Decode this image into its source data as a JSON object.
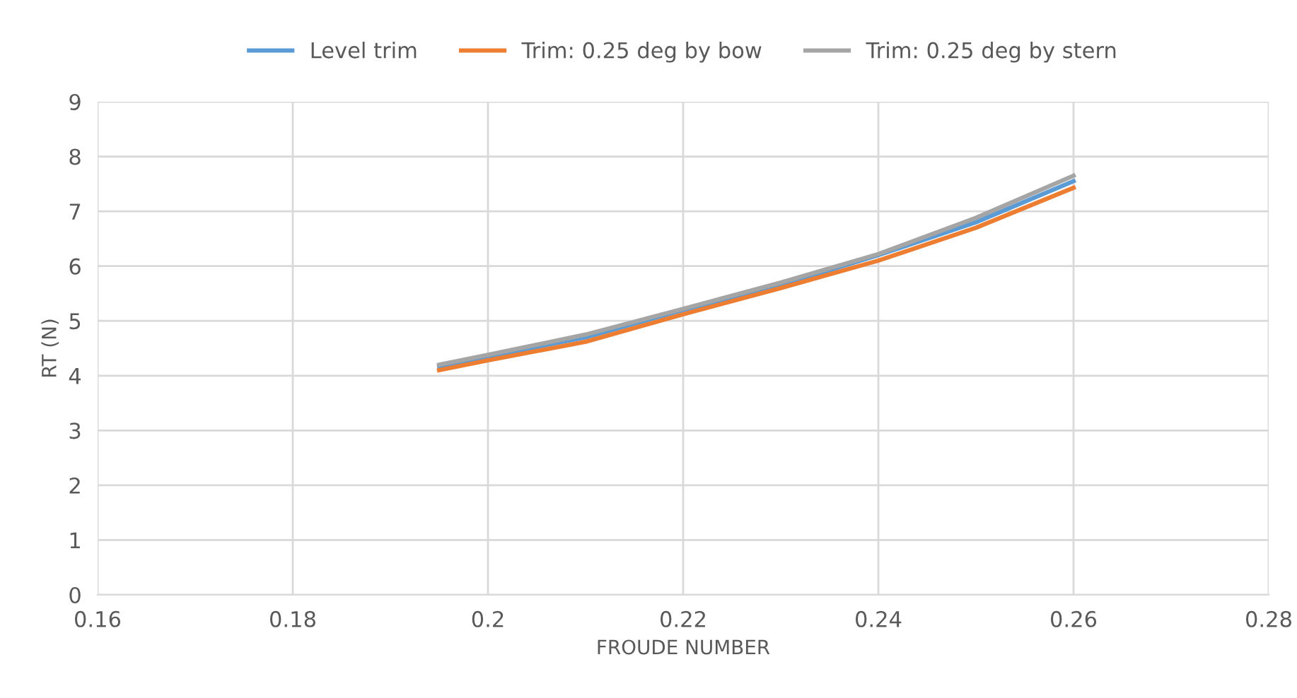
{
  "chart_data": {
    "type": "line",
    "xlabel": "FROUDE NUMBER",
    "ylabel": "RT (N)",
    "xlim": [
      0.16,
      0.28
    ],
    "xticks": [
      0.16,
      0.18,
      0.2,
      0.22,
      0.24,
      0.26,
      0.28
    ],
    "ylim": [
      0,
      9
    ],
    "yticks": [
      0,
      1,
      2,
      3,
      4,
      5,
      6,
      7,
      8,
      9
    ],
    "grid": true,
    "legend": "top",
    "marker": "none",
    "series": [
      {
        "name": "Level trim",
        "color": "#5b9bd5",
        "x": [
          0.195,
          0.2,
          0.21,
          0.22,
          0.23,
          0.24,
          0.25,
          0.26
        ],
        "values": [
          4.17,
          4.35,
          4.7,
          5.2,
          5.65,
          6.2,
          6.8,
          7.55
        ]
      },
      {
        "name": "Trim: 0.25 deg by bow",
        "color": "#ed7d31",
        "x": [
          0.195,
          0.2,
          0.21,
          0.22,
          0.23,
          0.24,
          0.25,
          0.26
        ],
        "values": [
          4.1,
          4.28,
          4.62,
          5.12,
          5.6,
          6.1,
          6.7,
          7.43
        ]
      },
      {
        "name": "Trim: 0.25 deg by stern",
        "color": "#a5a5a5",
        "x": [
          0.195,
          0.2,
          0.21,
          0.22,
          0.23,
          0.24,
          0.25,
          0.26
        ],
        "values": [
          4.2,
          4.38,
          4.75,
          5.22,
          5.7,
          6.22,
          6.88,
          7.65
        ]
      }
    ]
  }
}
